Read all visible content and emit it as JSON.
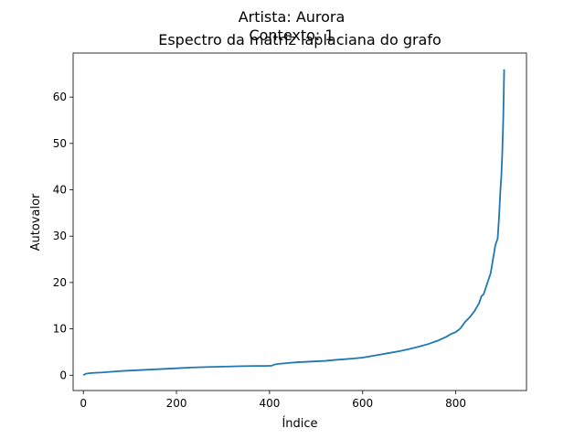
{
  "chart_data": {
    "type": "line",
    "title_lines": [
      "Artista: Aurora",
      "Contexto: 1",
      "Espectro da matriz laplaciana do grafo"
    ],
    "xlabel": "Índice",
    "ylabel": "Autovalor",
    "xlim": [
      -22,
      952
    ],
    "ylim": [
      -3.3,
      69.5
    ],
    "xticks": [
      0,
      200,
      400,
      600,
      800
    ],
    "yticks": [
      0,
      10,
      20,
      30,
      40,
      50,
      60
    ],
    "grid": false,
    "series": [
      {
        "color": "#1f77b4",
        "x": [
          0,
          5,
          10,
          20,
          40,
          60,
          80,
          100,
          120,
          140,
          160,
          180,
          200,
          230,
          260,
          300,
          340,
          370,
          390,
          405,
          410,
          420,
          440,
          460,
          480,
          500,
          520,
          540,
          560,
          580,
          600,
          620,
          640,
          660,
          680,
          700,
          720,
          740,
          760,
          780,
          790,
          800,
          810,
          820,
          830,
          840,
          850,
          855,
          860,
          865,
          870,
          875,
          880,
          885,
          890,
          893,
          896,
          898,
          900,
          902,
          903,
          904
        ],
        "y": [
          0,
          0.3,
          0.4,
          0.5,
          0.6,
          0.75,
          0.9,
          1.0,
          1.1,
          1.2,
          1.3,
          1.4,
          1.5,
          1.65,
          1.75,
          1.85,
          1.95,
          2.0,
          2.0,
          2.05,
          2.3,
          2.45,
          2.65,
          2.8,
          2.9,
          3.0,
          3.1,
          3.3,
          3.45,
          3.6,
          3.8,
          4.15,
          4.5,
          4.85,
          5.2,
          5.65,
          6.15,
          6.7,
          7.4,
          8.3,
          8.9,
          9.3,
          10.1,
          11.5,
          12.5,
          13.8,
          15.5,
          17.0,
          17.5,
          19.0,
          20.5,
          22.0,
          25.0,
          28.0,
          29.5,
          34.0,
          40.0,
          43.0,
          48.0,
          55.0,
          60.0,
          66.0
        ]
      }
    ]
  }
}
